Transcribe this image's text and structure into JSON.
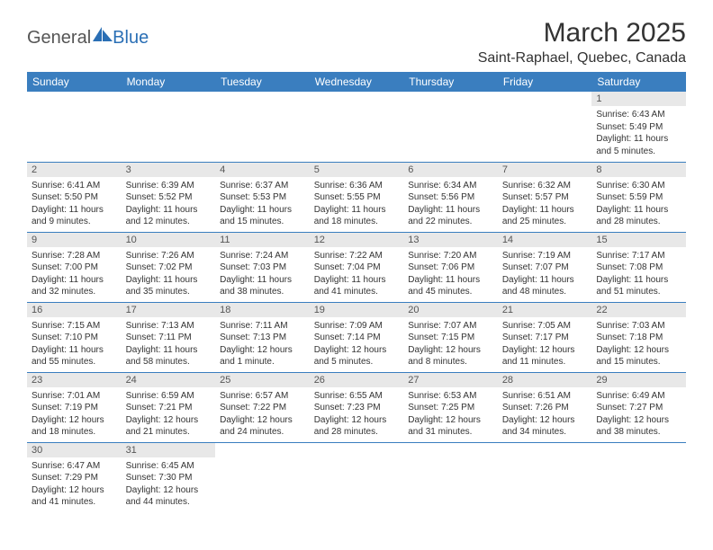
{
  "logo": {
    "general": "General",
    "blue": "Blue",
    "sail_color": "#2a6fb5"
  },
  "title": "March 2025",
  "location": "Saint-Raphael, Quebec, Canada",
  "header_row_bg": "#3a7ebf",
  "day_header_bg": "#e8e8e8",
  "text_color": "#333333",
  "days_of_week": [
    "Sunday",
    "Monday",
    "Tuesday",
    "Wednesday",
    "Thursday",
    "Friday",
    "Saturday"
  ],
  "first_weekday_index": 6,
  "days": [
    {
      "n": 1,
      "sr": "6:43 AM",
      "ss": "5:49 PM",
      "dl": "11 hours and 5 minutes."
    },
    {
      "n": 2,
      "sr": "6:41 AM",
      "ss": "5:50 PM",
      "dl": "11 hours and 9 minutes."
    },
    {
      "n": 3,
      "sr": "6:39 AM",
      "ss": "5:52 PM",
      "dl": "11 hours and 12 minutes."
    },
    {
      "n": 4,
      "sr": "6:37 AM",
      "ss": "5:53 PM",
      "dl": "11 hours and 15 minutes."
    },
    {
      "n": 5,
      "sr": "6:36 AM",
      "ss": "5:55 PM",
      "dl": "11 hours and 18 minutes."
    },
    {
      "n": 6,
      "sr": "6:34 AM",
      "ss": "5:56 PM",
      "dl": "11 hours and 22 minutes."
    },
    {
      "n": 7,
      "sr": "6:32 AM",
      "ss": "5:57 PM",
      "dl": "11 hours and 25 minutes."
    },
    {
      "n": 8,
      "sr": "6:30 AM",
      "ss": "5:59 PM",
      "dl": "11 hours and 28 minutes."
    },
    {
      "n": 9,
      "sr": "7:28 AM",
      "ss": "7:00 PM",
      "dl": "11 hours and 32 minutes."
    },
    {
      "n": 10,
      "sr": "7:26 AM",
      "ss": "7:02 PM",
      "dl": "11 hours and 35 minutes."
    },
    {
      "n": 11,
      "sr": "7:24 AM",
      "ss": "7:03 PM",
      "dl": "11 hours and 38 minutes."
    },
    {
      "n": 12,
      "sr": "7:22 AM",
      "ss": "7:04 PM",
      "dl": "11 hours and 41 minutes."
    },
    {
      "n": 13,
      "sr": "7:20 AM",
      "ss": "7:06 PM",
      "dl": "11 hours and 45 minutes."
    },
    {
      "n": 14,
      "sr": "7:19 AM",
      "ss": "7:07 PM",
      "dl": "11 hours and 48 minutes."
    },
    {
      "n": 15,
      "sr": "7:17 AM",
      "ss": "7:08 PM",
      "dl": "11 hours and 51 minutes."
    },
    {
      "n": 16,
      "sr": "7:15 AM",
      "ss": "7:10 PM",
      "dl": "11 hours and 55 minutes."
    },
    {
      "n": 17,
      "sr": "7:13 AM",
      "ss": "7:11 PM",
      "dl": "11 hours and 58 minutes."
    },
    {
      "n": 18,
      "sr": "7:11 AM",
      "ss": "7:13 PM",
      "dl": "12 hours and 1 minute."
    },
    {
      "n": 19,
      "sr": "7:09 AM",
      "ss": "7:14 PM",
      "dl": "12 hours and 5 minutes."
    },
    {
      "n": 20,
      "sr": "7:07 AM",
      "ss": "7:15 PM",
      "dl": "12 hours and 8 minutes."
    },
    {
      "n": 21,
      "sr": "7:05 AM",
      "ss": "7:17 PM",
      "dl": "12 hours and 11 minutes."
    },
    {
      "n": 22,
      "sr": "7:03 AM",
      "ss": "7:18 PM",
      "dl": "12 hours and 15 minutes."
    },
    {
      "n": 23,
      "sr": "7:01 AM",
      "ss": "7:19 PM",
      "dl": "12 hours and 18 minutes."
    },
    {
      "n": 24,
      "sr": "6:59 AM",
      "ss": "7:21 PM",
      "dl": "12 hours and 21 minutes."
    },
    {
      "n": 25,
      "sr": "6:57 AM",
      "ss": "7:22 PM",
      "dl": "12 hours and 24 minutes."
    },
    {
      "n": 26,
      "sr": "6:55 AM",
      "ss": "7:23 PM",
      "dl": "12 hours and 28 minutes."
    },
    {
      "n": 27,
      "sr": "6:53 AM",
      "ss": "7:25 PM",
      "dl": "12 hours and 31 minutes."
    },
    {
      "n": 28,
      "sr": "6:51 AM",
      "ss": "7:26 PM",
      "dl": "12 hours and 34 minutes."
    },
    {
      "n": 29,
      "sr": "6:49 AM",
      "ss": "7:27 PM",
      "dl": "12 hours and 38 minutes."
    },
    {
      "n": 30,
      "sr": "6:47 AM",
      "ss": "7:29 PM",
      "dl": "12 hours and 41 minutes."
    },
    {
      "n": 31,
      "sr": "6:45 AM",
      "ss": "7:30 PM",
      "dl": "12 hours and 44 minutes."
    }
  ],
  "labels": {
    "sunrise": "Sunrise:",
    "sunset": "Sunset:",
    "daylight": "Daylight:"
  }
}
